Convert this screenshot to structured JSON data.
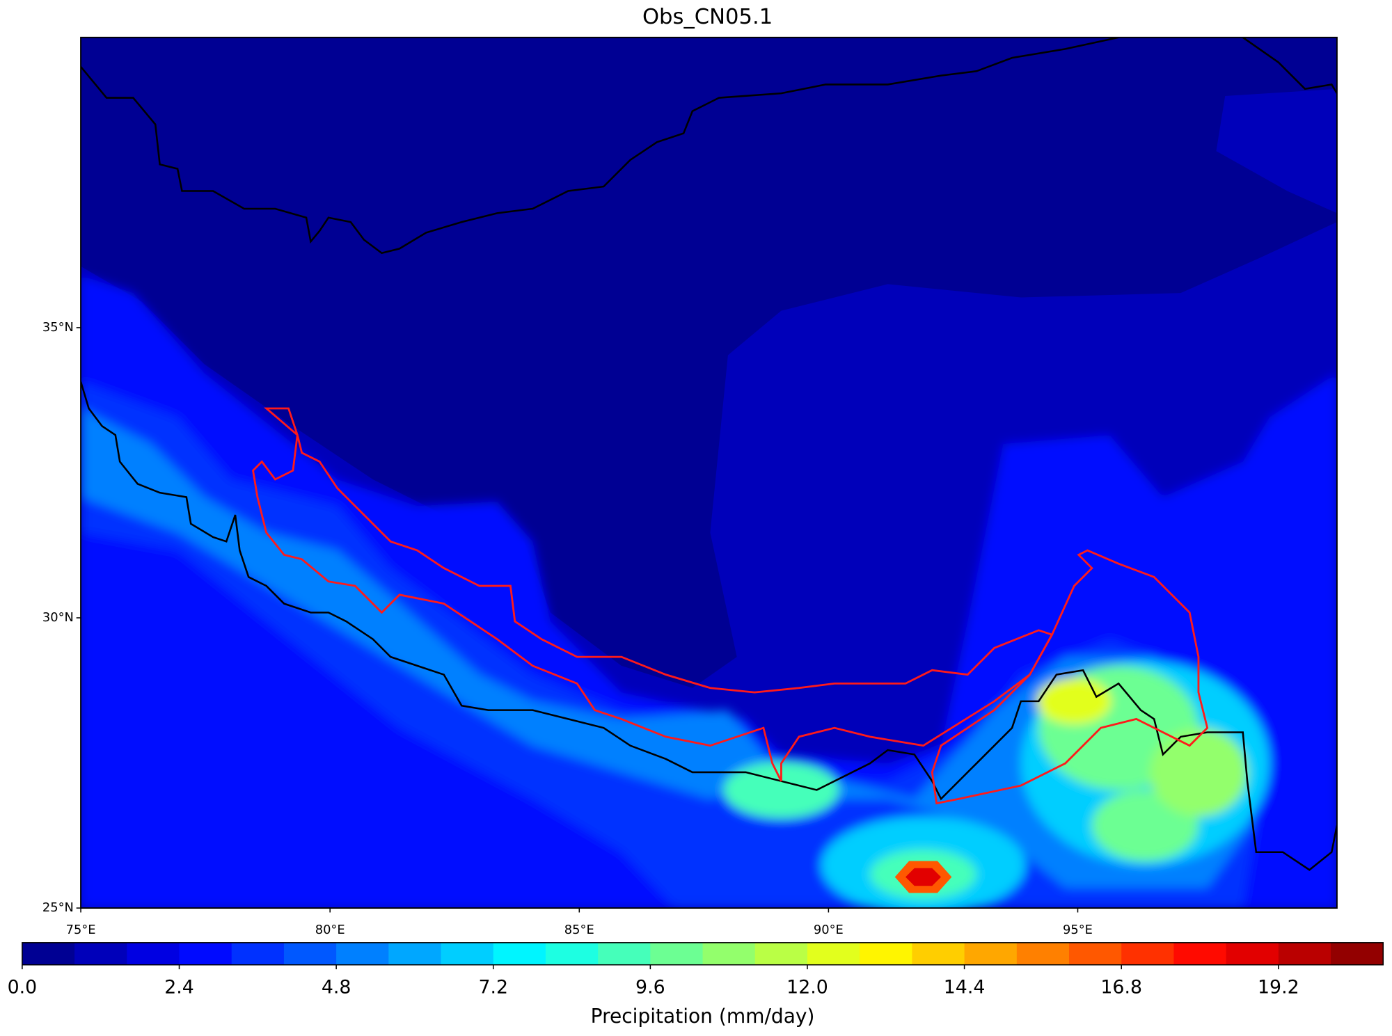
{
  "map": {
    "title": "Obs_CN05.1",
    "xlim": [
      75,
      100.2
    ],
    "ylim": [
      25,
      40
    ],
    "xticks": [
      {
        "value": 75,
        "label": "75°E"
      },
      {
        "value": 80,
        "label": "80°E"
      },
      {
        "value": 85,
        "label": "85°E"
      },
      {
        "value": 90,
        "label": "90°E"
      },
      {
        "value": 95,
        "label": "95°E"
      }
    ],
    "yticks": [
      {
        "value": 25,
        "label": "25°N"
      },
      {
        "value": 30,
        "label": "30°N"
      },
      {
        "value": 35,
        "label": "35°N"
      }
    ]
  },
  "colorbar": {
    "label": "Precipitation (mm/day)",
    "lim": [
      0,
      20.8
    ],
    "ticks": [
      {
        "value": 0,
        "label": "0.0"
      },
      2.4,
      4.8,
      7.2,
      9.6,
      {
        "value": 12,
        "label": "12.0"
      },
      14.4,
      16.8,
      19.2
    ],
    "colors": [
      "#000093",
      "#0000ba",
      "#0000e2",
      "#000aff",
      "#0031ff",
      "#0058ff",
      "#0080ff",
      "#00a7ff",
      "#00ceff",
      "#00f5ff",
      "#1dffe2",
      "#45ffba",
      "#6cff93",
      "#93ff6c",
      "#baff45",
      "#e2ff1d",
      "#fff500",
      "#ffce00",
      "#ffa700",
      "#ff8000",
      "#ff5800",
      "#ff3100",
      "#ff0a00",
      "#e20000",
      "#ba0000",
      "#930000"
    ]
  }
}
